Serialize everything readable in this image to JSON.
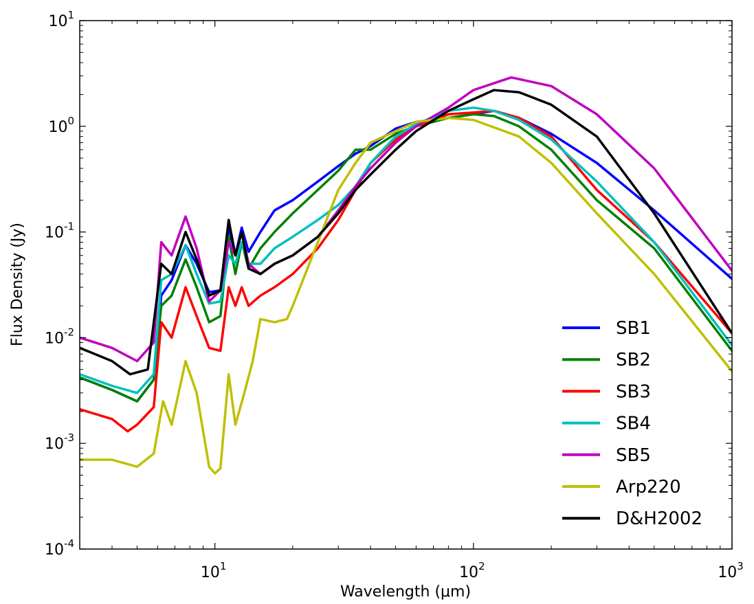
{
  "chart_data": {
    "type": "line",
    "title": "",
    "xlabel": "Wavelength (μm)",
    "ylabel": "Flux Density (Jy)",
    "xscale": "log",
    "yscale": "log",
    "xlim": [
      3,
      1000
    ],
    "ylim": [
      0.0001,
      10
    ],
    "xticks": [
      {
        "value": 10,
        "base": "10",
        "exp": "1"
      },
      {
        "value": 100,
        "base": "10",
        "exp": "2"
      },
      {
        "value": 1000,
        "base": "10",
        "exp": "3"
      }
    ],
    "yticks": [
      {
        "value": 0.0001,
        "base": "10",
        "exp": "-4"
      },
      {
        "value": 0.001,
        "base": "10",
        "exp": "-3"
      },
      {
        "value": 0.01,
        "base": "10",
        "exp": "-2"
      },
      {
        "value": 0.1,
        "base": "10",
        "exp": "-1"
      },
      {
        "value": 1,
        "base": "10",
        "exp": "0"
      },
      {
        "value": 10,
        "base": "10",
        "exp": "1"
      }
    ],
    "grid": false,
    "legend_position": "bottom-right",
    "series": [
      {
        "name": "SB1",
        "color": "#0000ff",
        "points": [
          [
            3,
            0.0042
          ],
          [
            4,
            0.0032
          ],
          [
            5,
            0.0025
          ],
          [
            5.8,
            0.004
          ],
          [
            6.2,
            0.025
          ],
          [
            6.8,
            0.035
          ],
          [
            7.7,
            0.075
          ],
          [
            8.5,
            0.05
          ],
          [
            9.5,
            0.027
          ],
          [
            10.5,
            0.028
          ],
          [
            11.3,
            0.11
          ],
          [
            12,
            0.06
          ],
          [
            12.7,
            0.11
          ],
          [
            13.5,
            0.065
          ],
          [
            15,
            0.1
          ],
          [
            17,
            0.16
          ],
          [
            20,
            0.2
          ],
          [
            25,
            0.3
          ],
          [
            30,
            0.42
          ],
          [
            35,
            0.55
          ],
          [
            40,
            0.65
          ],
          [
            50,
            0.95
          ],
          [
            60,
            1.1
          ],
          [
            80,
            1.2
          ],
          [
            100,
            1.3
          ],
          [
            120,
            1.4
          ],
          [
            150,
            1.2
          ],
          [
            200,
            0.85
          ],
          [
            300,
            0.45
          ],
          [
            500,
            0.16
          ],
          [
            1000,
            0.036
          ]
        ]
      },
      {
        "name": "SB2",
        "color": "#008000",
        "points": [
          [
            3,
            0.0042
          ],
          [
            4,
            0.0032
          ],
          [
            5,
            0.0025
          ],
          [
            5.8,
            0.004
          ],
          [
            6.2,
            0.02
          ],
          [
            6.8,
            0.025
          ],
          [
            7.7,
            0.055
          ],
          [
            8.5,
            0.03
          ],
          [
            9.5,
            0.014
          ],
          [
            10.5,
            0.016
          ],
          [
            11.3,
            0.09
          ],
          [
            12,
            0.04
          ],
          [
            12.7,
            0.08
          ],
          [
            13.5,
            0.045
          ],
          [
            15,
            0.07
          ],
          [
            17,
            0.1
          ],
          [
            20,
            0.15
          ],
          [
            25,
            0.25
          ],
          [
            30,
            0.38
          ],
          [
            35,
            0.6
          ],
          [
            40,
            0.6
          ],
          [
            50,
            0.85
          ],
          [
            60,
            1.0
          ],
          [
            80,
            1.2
          ],
          [
            100,
            1.3
          ],
          [
            120,
            1.25
          ],
          [
            150,
            1.0
          ],
          [
            200,
            0.6
          ],
          [
            300,
            0.2
          ],
          [
            500,
            0.07
          ],
          [
            1000,
            0.0075
          ]
        ]
      },
      {
        "name": "SB3",
        "color": "#ff0000",
        "points": [
          [
            3,
            0.0021
          ],
          [
            4,
            0.0017
          ],
          [
            4.6,
            0.0013
          ],
          [
            5,
            0.0015
          ],
          [
            5.8,
            0.0022
          ],
          [
            6.2,
            0.014
          ],
          [
            6.8,
            0.01
          ],
          [
            7.7,
            0.03
          ],
          [
            8.5,
            0.016
          ],
          [
            9.5,
            0.008
          ],
          [
            10.5,
            0.0075
          ],
          [
            11.3,
            0.03
          ],
          [
            12,
            0.02
          ],
          [
            12.7,
            0.03
          ],
          [
            13.5,
            0.02
          ],
          [
            15,
            0.025
          ],
          [
            17,
            0.03
          ],
          [
            20,
            0.04
          ],
          [
            25,
            0.07
          ],
          [
            30,
            0.13
          ],
          [
            35,
            0.25
          ],
          [
            40,
            0.45
          ],
          [
            50,
            0.75
          ],
          [
            60,
            1.0
          ],
          [
            80,
            1.3
          ],
          [
            100,
            1.35
          ],
          [
            120,
            1.4
          ],
          [
            150,
            1.2
          ],
          [
            200,
            0.8
          ],
          [
            300,
            0.25
          ],
          [
            500,
            0.08
          ],
          [
            1000,
            0.011
          ]
        ]
      },
      {
        "name": "SB4",
        "color": "#00bfbf",
        "points": [
          [
            3,
            0.0045
          ],
          [
            4,
            0.0035
          ],
          [
            5,
            0.003
          ],
          [
            5.8,
            0.0045
          ],
          [
            6.2,
            0.035
          ],
          [
            6.8,
            0.04
          ],
          [
            7.7,
            0.075
          ],
          [
            8.5,
            0.04
          ],
          [
            9.5,
            0.021
          ],
          [
            10.5,
            0.022
          ],
          [
            11.3,
            0.06
          ],
          [
            12,
            0.05
          ],
          [
            12.7,
            0.08
          ],
          [
            13.5,
            0.05
          ],
          [
            15,
            0.05
          ],
          [
            17,
            0.07
          ],
          [
            20,
            0.09
          ],
          [
            25,
            0.13
          ],
          [
            30,
            0.18
          ],
          [
            35,
            0.27
          ],
          [
            40,
            0.45
          ],
          [
            50,
            0.8
          ],
          [
            60,
            1.05
          ],
          [
            80,
            1.4
          ],
          [
            100,
            1.5
          ],
          [
            120,
            1.4
          ],
          [
            150,
            1.15
          ],
          [
            200,
            0.75
          ],
          [
            300,
            0.3
          ],
          [
            500,
            0.08
          ],
          [
            1000,
            0.0085
          ]
        ]
      },
      {
        "name": "SB5",
        "color": "#bf00bf",
        "points": [
          [
            3,
            0.01
          ],
          [
            4,
            0.008
          ],
          [
            5,
            0.006
          ],
          [
            5.8,
            0.009
          ],
          [
            6.2,
            0.08
          ],
          [
            6.8,
            0.06
          ],
          [
            7.7,
            0.14
          ],
          [
            8.5,
            0.07
          ],
          [
            9.5,
            0.022
          ],
          [
            10.5,
            0.028
          ],
          [
            11.3,
            0.08
          ],
          [
            12,
            0.06
          ],
          [
            12.7,
            0.1
          ],
          [
            13.5,
            0.05
          ],
          [
            15,
            0.04
          ],
          [
            17,
            0.05
          ],
          [
            20,
            0.06
          ],
          [
            25,
            0.09
          ],
          [
            30,
            0.16
          ],
          [
            35,
            0.27
          ],
          [
            40,
            0.4
          ],
          [
            50,
            0.7
          ],
          [
            60,
            1.0
          ],
          [
            80,
            1.5
          ],
          [
            100,
            2.2
          ],
          [
            140,
            2.9
          ],
          [
            200,
            2.4
          ],
          [
            300,
            1.3
          ],
          [
            500,
            0.4
          ],
          [
            1000,
            0.043
          ]
        ]
      },
      {
        "name": "Arp220",
        "color": "#bfbf00",
        "points": [
          [
            3,
            0.0007
          ],
          [
            4,
            0.0007
          ],
          [
            5,
            0.0006
          ],
          [
            5.8,
            0.0008
          ],
          [
            6.3,
            0.0025
          ],
          [
            6.8,
            0.0015
          ],
          [
            7.7,
            0.006
          ],
          [
            8.5,
            0.003
          ],
          [
            9.5,
            0.0006
          ],
          [
            10,
            0.00052
          ],
          [
            10.5,
            0.00058
          ],
          [
            11.3,
            0.0045
          ],
          [
            12,
            0.0015
          ],
          [
            13,
            0.003
          ],
          [
            14,
            0.006
          ],
          [
            15,
            0.015
          ],
          [
            17,
            0.014
          ],
          [
            19,
            0.015
          ],
          [
            20,
            0.02
          ],
          [
            25,
            0.08
          ],
          [
            30,
            0.25
          ],
          [
            35,
            0.45
          ],
          [
            40,
            0.7
          ],
          [
            50,
            0.9
          ],
          [
            60,
            1.1
          ],
          [
            80,
            1.2
          ],
          [
            100,
            1.15
          ],
          [
            150,
            0.8
          ],
          [
            200,
            0.45
          ],
          [
            300,
            0.15
          ],
          [
            500,
            0.04
          ],
          [
            1000,
            0.0048
          ]
        ]
      },
      {
        "name": "D&H2002",
        "color": "#000000",
        "points": [
          [
            3,
            0.008
          ],
          [
            4,
            0.006
          ],
          [
            4.7,
            0.0045
          ],
          [
            5.5,
            0.005
          ],
          [
            6.2,
            0.05
          ],
          [
            6.8,
            0.04
          ],
          [
            7.7,
            0.1
          ],
          [
            8.5,
            0.055
          ],
          [
            9.5,
            0.025
          ],
          [
            10.5,
            0.028
          ],
          [
            11.3,
            0.13
          ],
          [
            12,
            0.06
          ],
          [
            12.7,
            0.1
          ],
          [
            13.5,
            0.045
          ],
          [
            15,
            0.04
          ],
          [
            17,
            0.05
          ],
          [
            20,
            0.06
          ],
          [
            25,
            0.09
          ],
          [
            30,
            0.15
          ],
          [
            35,
            0.25
          ],
          [
            40,
            0.35
          ],
          [
            50,
            0.6
          ],
          [
            60,
            0.9
          ],
          [
            80,
            1.4
          ],
          [
            100,
            1.8
          ],
          [
            120,
            2.2
          ],
          [
            150,
            2.1
          ],
          [
            200,
            1.6
          ],
          [
            300,
            0.8
          ],
          [
            500,
            0.15
          ],
          [
            1000,
            0.011
          ]
        ]
      }
    ]
  }
}
